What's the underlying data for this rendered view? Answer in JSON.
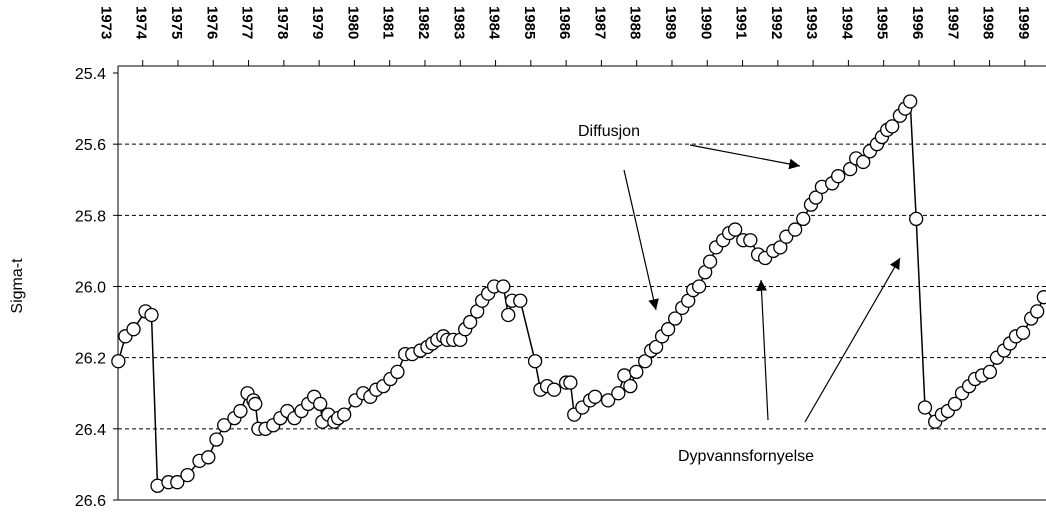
{
  "chart_data": {
    "type": "line",
    "y_label": "Sigma-t",
    "annotations": [
      "Diffusjon",
      "Dypvannsfornyelse"
    ],
    "color": "#000000",
    "marker_fill": "#ffffff",
    "grid": true,
    "ylim": [
      26.6,
      25.4
    ],
    "yticks": [
      25.4,
      25.6,
      25.8,
      {
        "value": 26,
        "label": "26.0"
      },
      26.2,
      26.4,
      26.6
    ],
    "xlim": [
      1973.3,
      1999.6
    ],
    "xticks": [
      1973,
      1974,
      1975,
      1976,
      1977,
      1978,
      1979,
      1980,
      1981,
      1982,
      1983,
      1984,
      1985,
      1986,
      1987,
      1988,
      1989,
      1990,
      1991,
      1992,
      1993,
      1994,
      1995,
      1996,
      1997,
      1998,
      1999
    ],
    "x": [
      1973.31,
      1973.51,
      1973.74,
      1974.08,
      1974.25,
      1974.42,
      1974.73,
      1974.98,
      1975.27,
      1975.61,
      1975.86,
      1976.09,
      1976.31,
      1976.6,
      1976.77,
      1976.97,
      1977.14,
      1977.19,
      1977.28,
      1977.48,
      1977.7,
      1977.9,
      1978.1,
      1978.3,
      1978.5,
      1978.69,
      1978.86,
      1979.03,
      1979.09,
      1979.26,
      1979.43,
      1979.54,
      1979.71,
      1980.03,
      1980.25,
      1980.45,
      1980.62,
      1980.82,
      1981.02,
      1981.22,
      1981.44,
      1981.64,
      1981.87,
      1982.07,
      1982.21,
      1982.35,
      1982.52,
      1982.63,
      1982.8,
      1983.0,
      1983.14,
      1983.28,
      1983.48,
      1983.62,
      1983.79,
      1983.96,
      1984.22,
      1984.36,
      1984.47,
      1984.7,
      1985.12,
      1985.27,
      1985.46,
      1985.66,
      1986.0,
      1986.12,
      1986.23,
      1986.46,
      1986.68,
      1986.82,
      1987.19,
      1987.48,
      1987.65,
      1987.82,
      1987.99,
      1988.24,
      1988.41,
      1988.55,
      1988.72,
      1988.89,
      1989.09,
      1989.29,
      1989.46,
      1989.6,
      1989.77,
      1989.94,
      1990.08,
      1990.25,
      1990.45,
      1990.62,
      1990.79,
      1991.02,
      1991.22,
      1991.44,
      1991.64,
      1991.87,
      1992.07,
      1992.24,
      1992.49,
      1992.72,
      1992.94,
      1993.08,
      1993.25,
      1993.54,
      1993.71,
      1994.05,
      1994.22,
      1994.42,
      1994.61,
      1994.81,
      1994.95,
      1995.1,
      1995.24,
      1995.46,
      1995.61,
      1995.75,
      1995.92,
      1996.17,
      1996.46,
      1996.65,
      1996.82,
      1997.02,
      1997.22,
      1997.42,
      1997.59,
      1997.79,
      1998.01,
      1998.21,
      1998.41,
      1998.58,
      1998.75,
      1998.95,
      1999.18,
      1999.35,
      1999.54
    ],
    "values": [
      26.21,
      26.14,
      26.12,
      26.07,
      26.08,
      26.56,
      26.55,
      26.55,
      26.53,
      26.49,
      26.48,
      26.43,
      26.39,
      26.37,
      26.35,
      26.3,
      26.32,
      26.33,
      26.4,
      26.4,
      26.39,
      26.37,
      26.35,
      26.37,
      26.35,
      26.33,
      26.31,
      26.33,
      26.38,
      26.36,
      26.38,
      26.37,
      26.36,
      26.32,
      26.3,
      26.31,
      26.29,
      26.28,
      26.26,
      26.24,
      26.19,
      26.19,
      26.18,
      26.17,
      26.16,
      26.15,
      26.14,
      26.15,
      26.15,
      26.15,
      26.12,
      26.1,
      26.07,
      26.04,
      26.02,
      26.0,
      26.0,
      26.08,
      26.04,
      26.04,
      26.21,
      26.29,
      26.28,
      26.29,
      26.27,
      26.27,
      26.36,
      26.34,
      26.32,
      26.31,
      26.32,
      26.3,
      26.25,
      26.28,
      26.24,
      26.21,
      26.18,
      26.17,
      26.14,
      26.12,
      26.09,
      26.06,
      26.04,
      26.01,
      26.0,
      25.96,
      25.93,
      25.89,
      25.87,
      25.85,
      25.84,
      25.87,
      25.87,
      25.91,
      25.92,
      25.9,
      25.89,
      25.86,
      25.84,
      25.81,
      25.77,
      25.75,
      25.72,
      25.71,
      25.69,
      25.67,
      25.64,
      25.65,
      25.62,
      25.6,
      25.58,
      25.56,
      25.55,
      25.52,
      25.5,
      25.48,
      25.81,
      26.34,
      26.38,
      26.36,
      26.35,
      26.33,
      26.3,
      26.28,
      26.26,
      26.25,
      26.24,
      26.2,
      26.18,
      26.16,
      26.14,
      26.13,
      26.09,
      26.07,
      26.03
    ]
  }
}
